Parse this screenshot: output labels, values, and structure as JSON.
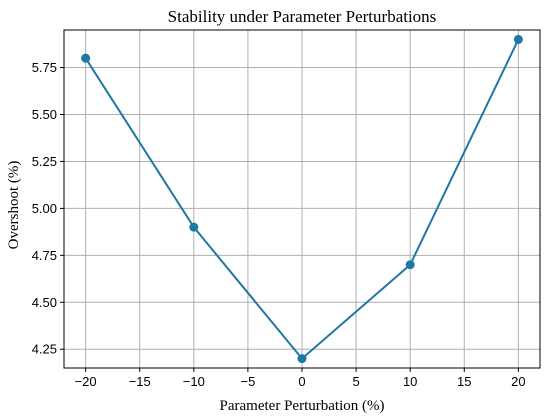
{
  "chart_data": {
    "type": "line",
    "title": "Stability under Parameter Perturbations",
    "xlabel": "Parameter Perturbation (%)",
    "ylabel": "Overshoot (%)",
    "x": [
      -20,
      -10,
      0,
      10,
      20
    ],
    "series": [
      {
        "values": [
          5.8,
          4.9,
          4.2,
          4.7,
          5.9
        ]
      }
    ],
    "xlim": [
      -22,
      22
    ],
    "ylim": [
      4.15,
      5.95
    ],
    "xticks": [
      -20,
      -15,
      -10,
      -5,
      0,
      5,
      10,
      15,
      20
    ],
    "yticks": [
      4.25,
      4.5,
      4.75,
      5.0,
      5.25,
      5.5,
      5.75
    ],
    "ytick_labels": [
      "4.25",
      "4.50",
      "4.75",
      "5.00",
      "5.25",
      "5.50",
      "5.75"
    ],
    "grid": true,
    "line_color": "#1f77a4",
    "grid_color": "#b0b0b0"
  }
}
